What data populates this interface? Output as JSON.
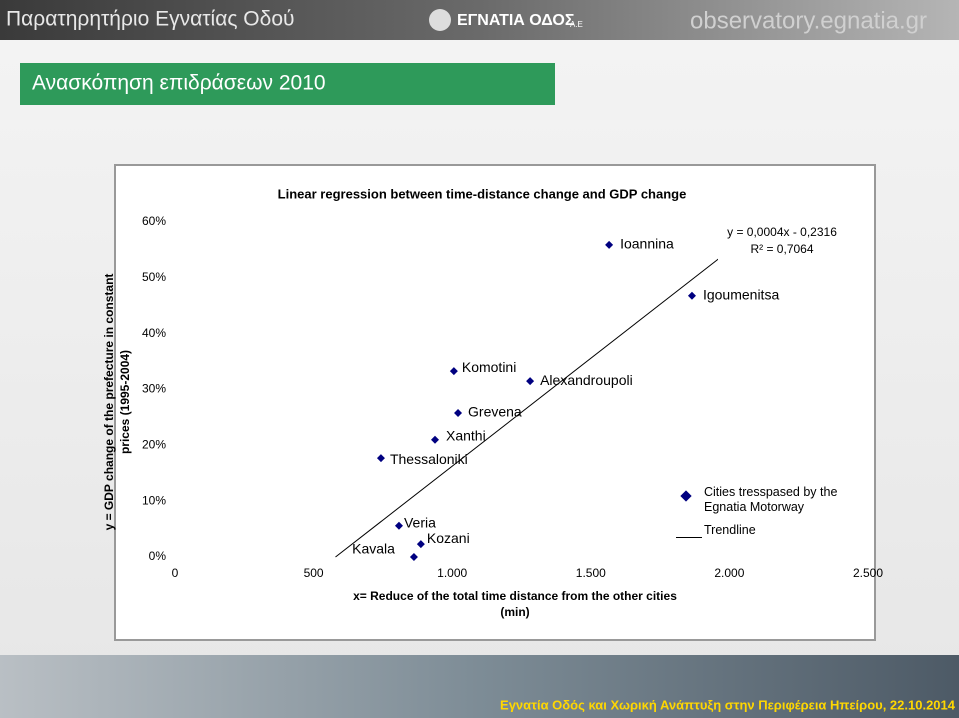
{
  "header": {
    "left": "Παρατηρητήριο Εγνατίας Οδού",
    "center": "ΕΓΝΑΤΙΑ ΟΔΟΣ",
    "center_suffix": "Α.Ε",
    "right": "observatory.egnatia.gr"
  },
  "slide_title": "Ανασκόπηση επιδράσεων 2010",
  "footer": "Εγνατία Οδός και Χωρική Ανάπτυξη στην Περιφέρεια Ηπείρου, 22.10.2014",
  "chart_data": {
    "type": "scatter",
    "title": "Linear regression between time-distance change and GDP change",
    "xlabel": [
      "x= Reduce of the total time distance from the other cities",
      "(min)"
    ],
    "ylabel": [
      "y = GDP change of the prefecture in constant",
      "prices (1995-2004)"
    ],
    "series": [
      {
        "name": "Cities tresspased by the Egnatia Motorway",
        "color": "#000080",
        "point_labels": [
          "Ioannina",
          "Igoumenitsa",
          "Komotini",
          "Alexandroupoli",
          "Grevena",
          "Xanthi",
          "Thessaloniki",
          "Veria",
          "Kozani",
          "Kavala"
        ],
        "x": [
          1566,
          1865,
          1006,
          1281,
          1021,
          938,
          743,
          808,
          887,
          862
        ],
        "values": [
          55.9,
          46.8,
          33.3,
          31.5,
          25.8,
          21.0,
          17.7,
          5.6,
          2.3,
          0
        ]
      }
    ],
    "trendline": {
      "name": "Trendline",
      "color": "#000000",
      "x": [
        579,
        1966
      ],
      "values": [
        0,
        53.6
      ]
    },
    "equation": "y = 0,0004x - 0,2316",
    "r_squared": "R² = 0,7064",
    "xlim": [
      0,
      2500
    ],
    "ylim": [
      0,
      60
    ],
    "xticks": [
      0,
      500,
      {
        "value": 1000,
        "label": "1.000"
      },
      {
        "value": 1500,
        "label": "1.500"
      },
      {
        "value": 2000,
        "label": "2.000"
      },
      {
        "value": 2500,
        "label": "2.500"
      }
    ],
    "yticks": [
      {
        "value": 0,
        "label": "0%"
      },
      {
        "value": 10,
        "label": "10%"
      },
      {
        "value": 20,
        "label": "20%"
      },
      {
        "value": 30,
        "label": "30%"
      },
      {
        "value": 40,
        "label": "40%"
      },
      {
        "value": 50,
        "label": "50%"
      },
      {
        "value": 60,
        "label": "60%"
      }
    ],
    "legend": "right"
  }
}
